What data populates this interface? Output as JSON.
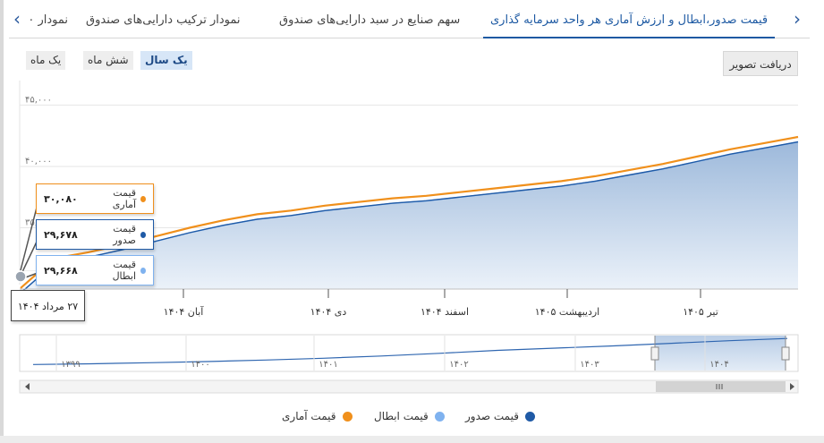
{
  "tabs": [
    {
      "label": "قیمت صدور،ابطال و ارزش آماری هر واحد سرمایه گذاری",
      "active": true
    },
    {
      "label": "سهم صنایع در سبد دارایی‌های صندوق",
      "active": false
    },
    {
      "label": "نمودار ترکیب دارایی‌های صندوق",
      "active": false
    },
    {
      "label": "نمودار ۰",
      "active": false
    }
  ],
  "range_buttons": [
    {
      "label": "یک سال",
      "active": true
    },
    {
      "label": "شش ماه",
      "active": false
    },
    {
      "label": "یک ماه",
      "active": false
    }
  ],
  "export_label": "دریافت تصویر",
  "colors": {
    "statistical": "#f0901c",
    "issue": "#1f5aa6",
    "redemption": "#7fb2ef"
  },
  "tooltip": {
    "date": "۲۷ مرداد ۱۴۰۴",
    "statistical": {
      "label": "قیمت آماری",
      "value": "۳۰,۰۸۰"
    },
    "issue": {
      "label": "قیمت صدور",
      "value": "۲۹,۶۷۸"
    },
    "redemption": {
      "label": "قیمت ابطال",
      "value": "۲۹,۶۶۸"
    }
  },
  "legend": [
    {
      "label": "قیمت صدور",
      "color": "#1f5aa6"
    },
    {
      "label": "قیمت ابطال",
      "color": "#7fb2ef"
    },
    {
      "label": "قیمت آماری",
      "color": "#f0901c"
    }
  ],
  "chart_data": {
    "type": "area",
    "x_tick_labels": [
      "آبان ۱۴۰۴",
      "دی ۱۴۰۴",
      "اسفند ۱۴۰۴",
      "اردیبهشت ۱۴۰۵",
      "تیر ۱۴۰۵"
    ],
    "y_tick_labels": [
      "۳۵,۰۰۰",
      "۴۰,۰۰۰",
      "۴۵,۰۰۰"
    ],
    "ylim": [
      30000,
      47000
    ],
    "x": [
      "۱۴۰۴/۰۵/۲۷",
      "۱۴۰۴/۰۶/۱۵",
      "۱۴۰۴/۰۷/۰۱",
      "۱۴۰۴/۰۷/۱۵",
      "۱۴۰۴/۰۸/۰۱",
      "۱۴۰۴/۰۸/۱۵",
      "۱۴۰۴/۰۹/۰۱",
      "۱۴۰۴/۰۹/۱۵",
      "۱۴۰۴/۱۰/۰۱",
      "۱۴۰۴/۱۰/۱۵",
      "۱۴۰۴/۱۱/۰۱",
      "۱۴۰۴/۱۱/۱۵",
      "۱۴۰۴/۱۲/۰۱",
      "۱۴۰۴/۱۲/۱۵",
      "۱۴۰۵/۰۱/۰۱",
      "۱۴۰۵/۰۱/۱۵",
      "۱۴۰۵/۰۲/۰۱",
      "۱۴۰۵/۰۲/۱۵",
      "۱۴۰۵/۰۳/۰۱",
      "۱۴۰۵/۰۳/۱۵",
      "۱۴۰۵/۰۴/۰۱",
      "۱۴۰۵/۰۴/۱۵",
      "۱۴۰۵/۰۵/۰۱",
      "۱۴۰۵/۰۵/۱۵"
    ],
    "series": [
      {
        "name": "قیمت آماری",
        "color": "#f0901c",
        "values": [
          30080,
          32500,
          33000,
          33600,
          34300,
          35000,
          35600,
          36100,
          36400,
          36800,
          37100,
          37400,
          37600,
          37900,
          38200,
          38500,
          38800,
          39200,
          39700,
          40200,
          40800,
          41400,
          41900,
          42400
        ]
      },
      {
        "name": "قیمت صدور",
        "color": "#1f5aa6",
        "values": [
          29678,
          32100,
          32600,
          33200,
          33900,
          34600,
          35200,
          35700,
          36000,
          36400,
          36700,
          37000,
          37200,
          37500,
          37800,
          38100,
          38400,
          38800,
          39300,
          39800,
          40400,
          41000,
          41500,
          42000
        ]
      },
      {
        "name": "قیمت ابطال",
        "color": "#7fb2ef",
        "values": [
          29668,
          32090,
          32590,
          33190,
          33890,
          34590,
          35190,
          35690,
          35990,
          36390,
          36690,
          36990,
          37190,
          37490,
          37790,
          38090,
          38390,
          38790,
          39290,
          39790,
          40390,
          40990,
          41490,
          41990
        ]
      }
    ],
    "navigator": {
      "x_tick_labels": [
        "۱۳۹۹",
        "۱۴۰۰",
        "۱۴۰۱",
        "۱۴۰۲",
        "۱۴۰۳",
        "۱۴۰۴"
      ],
      "values": [
        8000,
        9000,
        10500,
        12000,
        14000,
        16500,
        19500,
        23000,
        27000,
        30000,
        33000,
        36500,
        40000,
        43000
      ]
    },
    "grid": true,
    "legend_position": "bottom"
  }
}
